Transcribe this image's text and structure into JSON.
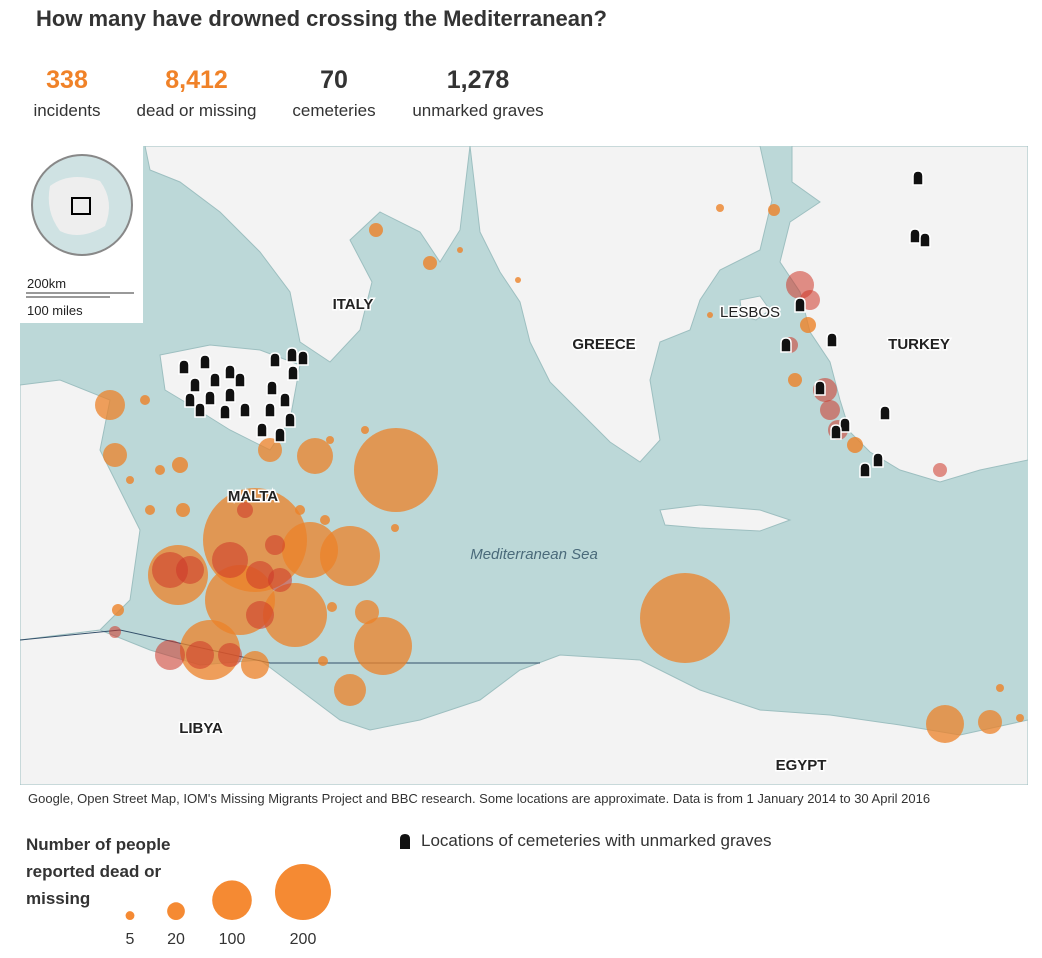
{
  "title": "How many have drowned crossing the Mediterranean?",
  "stats": [
    {
      "value": "338",
      "label": "incidents"
    },
    {
      "value": "8,412",
      "label": "dead or missing"
    },
    {
      "value": "70",
      "label": "cemeteries"
    },
    {
      "value": "1,278",
      "label": "unmarked graves"
    }
  ],
  "map": {
    "labels": [
      "ITALY",
      "GREECE",
      "TURKEY",
      "LESBOS",
      "MALTA",
      "LIBYA",
      "EGYPT"
    ],
    "sea_label": "Mediterranean Sea",
    "scale": [
      "200km",
      "100 miles"
    ]
  },
  "source": "Google, Open Street Map, IOM's Missing Migrants Project and BBC research. Some locations are approximate. Data is from 1 January 2014 to 30 April 2016",
  "legend": {
    "title": "Number of people reported dead or missing",
    "sizes": [
      5,
      20,
      100,
      200
    ],
    "cemetery_label": "Locations of cemeteries with unmarked graves"
  }
}
